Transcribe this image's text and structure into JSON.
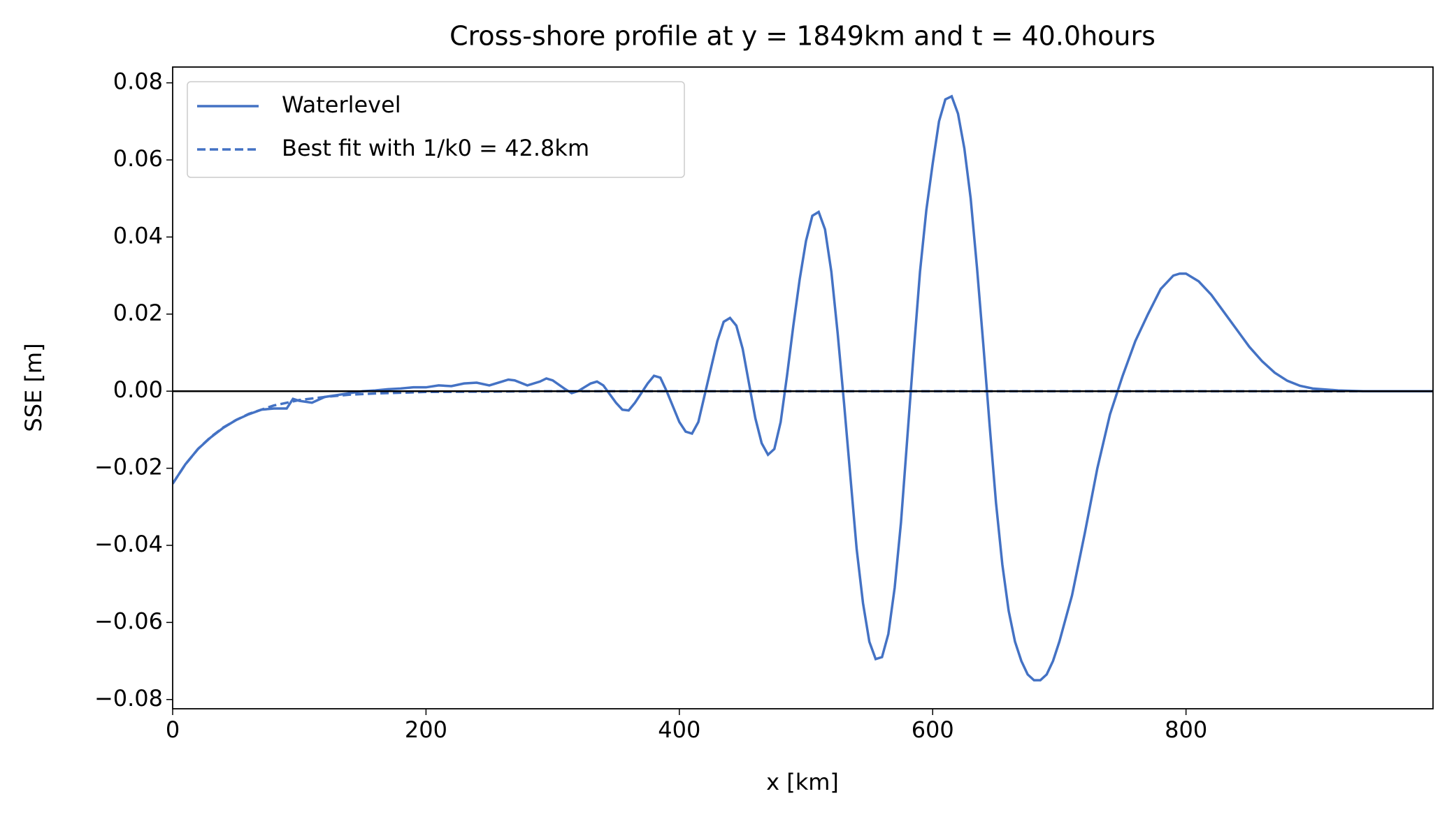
{
  "chart_data": {
    "type": "line",
    "title": "Cross-shore profile at y = 1849km and t = 40.0hours",
    "xlabel": "x [km]",
    "ylabel": "SSE [m]",
    "xlim": [
      0,
      995
    ],
    "ylim": [
      -0.0824,
      0.0841
    ],
    "xticks": [
      0,
      200,
      400,
      600,
      800
    ],
    "yticks": [
      {
        "value": -0.08,
        "label": "−0.08"
      },
      {
        "value": -0.06,
        "label": "−0.06"
      },
      {
        "value": -0.04,
        "label": "−0.04"
      },
      {
        "value": -0.02,
        "label": "−0.02"
      },
      {
        "value": 0,
        "label": "0.00"
      },
      {
        "value": 0.02,
        "label": "0.02"
      },
      {
        "value": 0.04,
        "label": "0.04"
      },
      {
        "value": 0.06,
        "label": "0.06"
      },
      {
        "value": 0.08,
        "label": "0.08"
      }
    ],
    "hline": 0,
    "legend": "upper left",
    "series": [
      {
        "name": "Waterlevel",
        "color": "#4472c4",
        "dash": false,
        "x": [
          0,
          10,
          20,
          30,
          40,
          50,
          60,
          70,
          80,
          90,
          95,
          100,
          110,
          120,
          130,
          140,
          150,
          160,
          170,
          180,
          190,
          200,
          210,
          220,
          230,
          240,
          250,
          260,
          265,
          270,
          280,
          290,
          295,
          300,
          310,
          315,
          320,
          330,
          335,
          340,
          350,
          355,
          360,
          365,
          375,
          380,
          385,
          390,
          395,
          400,
          405,
          410,
          415,
          420,
          425,
          430,
          435,
          440,
          445,
          450,
          455,
          460,
          465,
          470,
          475,
          480,
          485,
          490,
          495,
          500,
          505,
          510,
          515,
          520,
          525,
          530,
          535,
          540,
          545,
          550,
          555,
          560,
          565,
          570,
          575,
          580,
          585,
          590,
          595,
          600,
          605,
          610,
          615,
          620,
          625,
          630,
          635,
          640,
          645,
          650,
          655,
          660,
          665,
          670,
          675,
          680,
          685,
          690,
          695,
          700,
          710,
          720,
          730,
          740,
          750,
          760,
          770,
          780,
          790,
          795,
          800,
          810,
          820,
          830,
          840,
          850,
          860,
          870,
          880,
          890,
          900,
          920,
          940,
          995
        ],
        "values": [
          -0.024,
          -0.019,
          -0.015,
          -0.012,
          -0.0095,
          -0.0075,
          -0.006,
          -0.0048,
          -0.0045,
          -0.0045,
          -0.002,
          -0.0025,
          -0.003,
          -0.0015,
          -0.001,
          -0.0005,
          0,
          0.0002,
          0.0005,
          0.0007,
          0.001,
          0.001,
          0.0015,
          0.0013,
          0.002,
          0.0022,
          0.0015,
          0.0025,
          0.003,
          0.0028,
          0.0015,
          0.0025,
          0.0033,
          0.0028,
          0.0005,
          -0.0005,
          0,
          0.002,
          0.0025,
          0.0015,
          -0.003,
          -0.0048,
          -0.005,
          -0.003,
          0.002,
          0.004,
          0.0035,
          0,
          -0.004,
          -0.008,
          -0.0105,
          -0.011,
          -0.008,
          -0.001,
          0.006,
          0.013,
          0.018,
          0.019,
          0.017,
          0.011,
          0.002,
          -0.007,
          -0.0135,
          -0.0165,
          -0.015,
          -0.008,
          0.004,
          0.017,
          0.029,
          0.039,
          0.0455,
          0.0465,
          0.042,
          0.031,
          0.015,
          -0.003,
          -0.022,
          -0.041,
          -0.055,
          -0.065,
          -0.0695,
          -0.069,
          -0.063,
          -0.051,
          -0.034,
          -0.012,
          0.01,
          0.031,
          0.047,
          0.059,
          0.07,
          0.0757,
          0.0765,
          0.072,
          0.063,
          0.05,
          0.032,
          0.012,
          -0.009,
          -0.029,
          -0.045,
          -0.057,
          -0.065,
          -0.07,
          -0.0735,
          -0.075,
          -0.075,
          -0.0735,
          -0.07,
          -0.065,
          -0.053,
          -0.037,
          -0.02,
          -0.006,
          0.004,
          0.013,
          0.02,
          0.0265,
          0.03,
          0.0305,
          0.0305,
          0.0285,
          0.025,
          0.0205,
          0.016,
          0.0115,
          0.0078,
          0.0048,
          0.0027,
          0.0014,
          0.0007,
          0.0002,
          0,
          0
        ]
      },
      {
        "name": "Best fit with 1/k0 = 42.8km",
        "color": "#4472c4",
        "dash": true,
        "x": [
          0,
          10,
          20,
          30,
          40,
          50,
          60,
          80,
          100,
          120,
          140,
          160,
          200,
          250,
          300,
          400,
          600,
          800,
          995
        ],
        "values": [
          -0.024,
          -0.019,
          -0.015,
          -0.0119,
          -0.0094,
          -0.0075,
          -0.0059,
          -0.0037,
          -0.0023,
          -0.0015,
          -0.0009,
          -0.0006,
          -0.0002,
          -0.0001,
          0,
          0,
          0,
          0,
          0
        ]
      }
    ]
  }
}
